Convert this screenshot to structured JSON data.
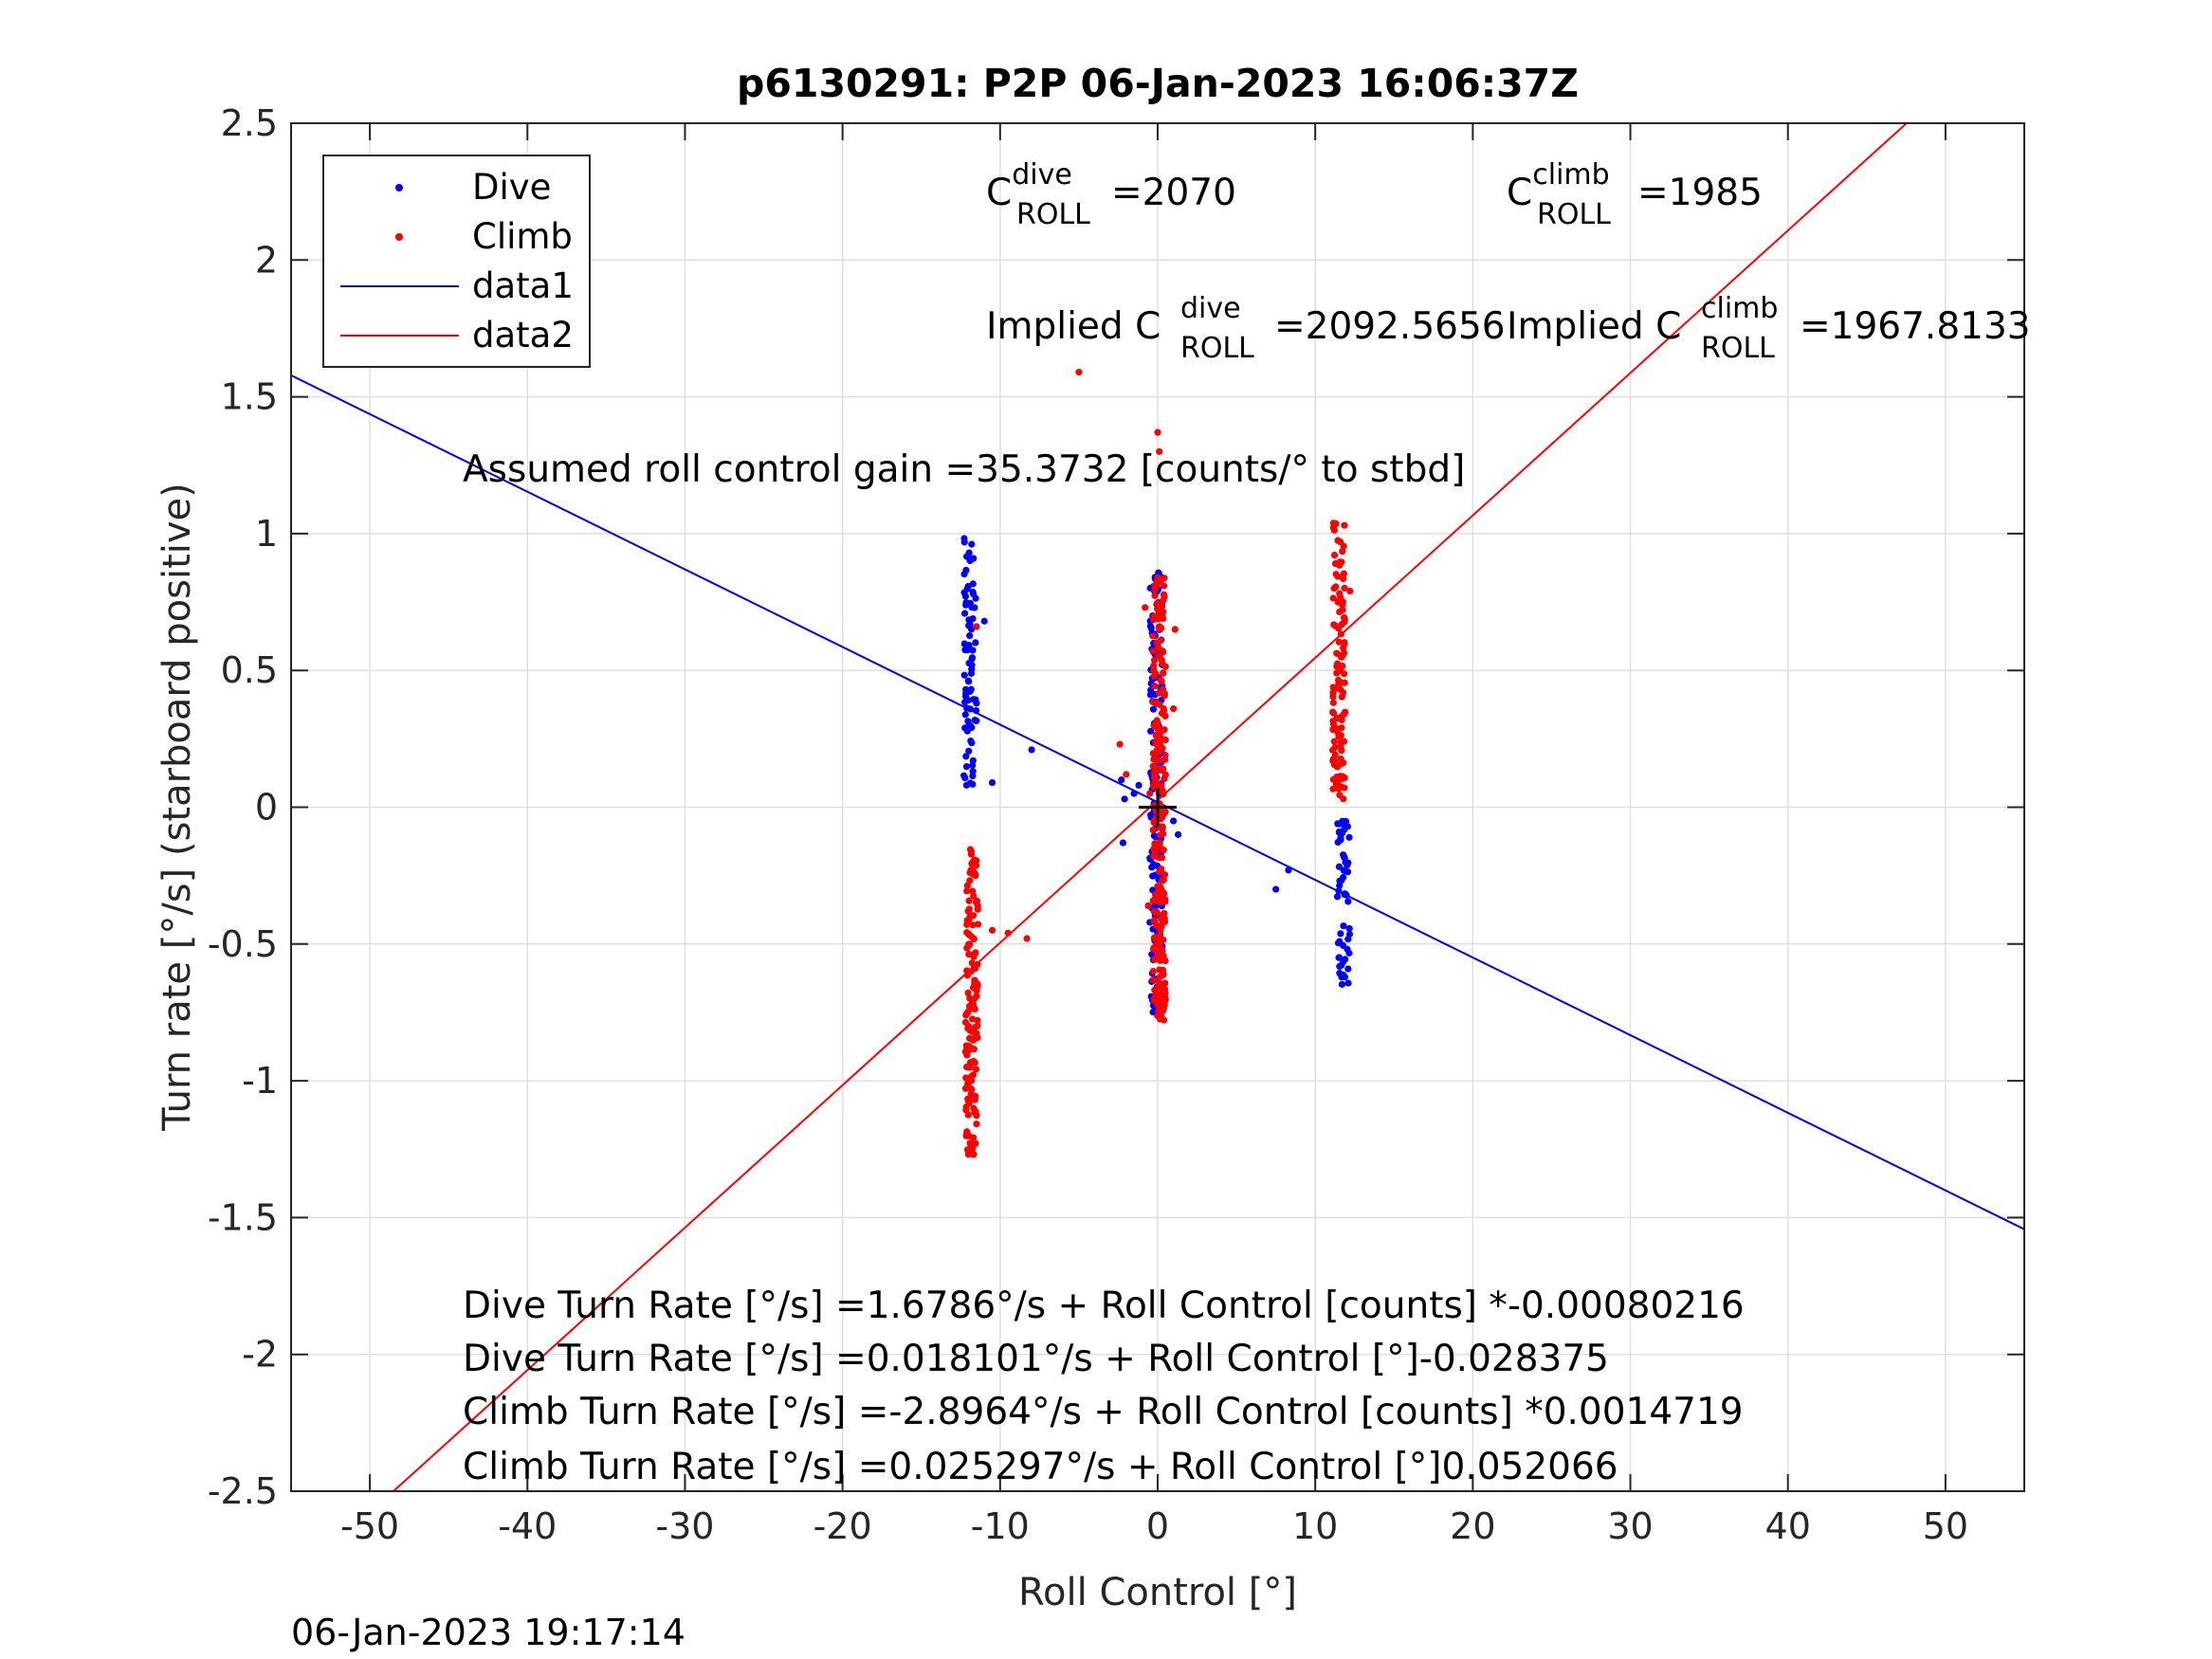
{
  "chart_data": {
    "type": "scatter",
    "title": "p6130291: P2P 06-Jan-2023 16:06:37Z",
    "xlabel": "Roll Control [°]",
    "ylabel": "Turn rate [°/s] (starboard positive)",
    "xlim": [
      -55,
      55
    ],
    "ylim": [
      -2.5,
      2.5
    ],
    "xticks": [
      -50,
      -40,
      -30,
      -20,
      -10,
      0,
      10,
      20,
      30,
      40,
      50
    ],
    "yticks": [
      -2.5,
      -2,
      -1.5,
      -1,
      -0.5,
      0,
      0.5,
      1,
      1.5,
      2,
      2.5
    ],
    "xtick_labels": [
      "-50",
      "-40",
      "-30",
      "-20",
      "-10",
      "0",
      "10",
      "20",
      "30",
      "40",
      "50"
    ],
    "ytick_labels": [
      "-2.5",
      "-2",
      "-1.5",
      "-1",
      "-0.5",
      "0",
      "0.5",
      "1",
      "1.5",
      "2",
      "2.5"
    ],
    "grid": true,
    "legend_position": "top-left",
    "legend": [
      {
        "label": "Dive",
        "kind": "marker",
        "color": "#0000ff"
      },
      {
        "label": "Climb",
        "kind": "marker",
        "color": "#ff0000"
      },
      {
        "label": "data1",
        "kind": "line",
        "color": "#0000ff"
      },
      {
        "label": "data2",
        "kind": "line",
        "color": "#ff0000"
      }
    ],
    "series": [
      {
        "name": "Dive",
        "color": "#0000ff",
        "clusters": [
          {
            "x": -11.9,
            "y_min": 0.05,
            "y_max": 1.0,
            "n": 80,
            "seed": 11
          },
          {
            "x": -0.1,
            "y_min": -0.75,
            "y_max": 0.86,
            "n": 150,
            "seed": 12
          },
          {
            "x": 11.8,
            "y_min": -0.65,
            "y_max": -0.05,
            "n": 60,
            "seed": 13
          }
        ],
        "points": [
          [
            -11.5,
            0.38
          ],
          [
            -11.0,
            0.68
          ],
          [
            -10.5,
            0.09
          ],
          [
            -8.0,
            0.21
          ],
          [
            -2.3,
            0.1
          ],
          [
            -2.2,
            -0.13
          ],
          [
            -2.1,
            0.03
          ],
          [
            -1.5,
            0.05
          ],
          [
            -1.2,
            0.08
          ],
          [
            1.0,
            -0.05
          ],
          [
            1.3,
            -0.1
          ],
          [
            7.5,
            -0.3
          ],
          [
            8.3,
            -0.23
          ]
        ]
      },
      {
        "name": "Climb",
        "color": "#ff0000",
        "clusters": [
          {
            "x": -11.8,
            "y_min": -1.27,
            "y_max": -0.15,
            "n": 150,
            "seed": 21
          },
          {
            "x": 0.1,
            "y_min": -0.78,
            "y_max": 0.85,
            "n": 260,
            "seed": 22
          },
          {
            "x": 11.5,
            "y_min": 0.03,
            "y_max": 1.04,
            "n": 120,
            "seed": 23
          }
        ],
        "points": [
          [
            -11.5,
            0.66
          ],
          [
            -10.5,
            -0.45
          ],
          [
            -9.5,
            -0.46
          ],
          [
            -8.3,
            -0.48
          ],
          [
            -2.4,
            0.23
          ],
          [
            -2.0,
            0.12
          ],
          [
            -0.8,
            0.73
          ],
          [
            -0.6,
            -0.36
          ],
          [
            -0.5,
            0.05
          ],
          [
            1.0,
            0.36
          ],
          [
            1.1,
            0.65
          ],
          [
            -5.0,
            1.59
          ],
          [
            0.0,
            1.37
          ],
          [
            0.1,
            1.3
          ],
          [
            12.2,
            0.79
          ],
          [
            11.2,
            0.8
          ]
        ]
      }
    ],
    "lines": [
      {
        "name": "data1",
        "color": "#0000ff",
        "intercept": 0.018101,
        "slope": -0.028375
      },
      {
        "name": "data2",
        "color": "#ff0000",
        "intercept": 0.025297,
        "slope": 0.052066
      }
    ],
    "center_mark": {
      "x": 0,
      "y": 0
    }
  },
  "annotations": {
    "c_dive_base": "C",
    "c_dive_sup": "dive",
    "c_dive_sub": "ROLL",
    "c_dive_value": "=2070",
    "c_climb_base": "C",
    "c_climb_sup": "climb",
    "c_climb_sub": "ROLL",
    "c_climb_value": "=1985",
    "implied_dive_prefix": "Implied C",
    "implied_dive_sup": "dive",
    "implied_dive_sub": "ROLL",
    "implied_dive_value": "=2092.5656",
    "implied_climb_prefix": "Implied C",
    "implied_climb_sup": "climb",
    "implied_climb_sub": "ROLL",
    "implied_climb_value": "=1967.8133",
    "gain": "Assumed roll control gain =35.3732 [counts/° to stbd]",
    "eq1": "Dive Turn Rate [°/s] =1.6786°/s + Roll Control [counts] *-0.00080216",
    "eq2": "Dive Turn Rate [°/s] =0.018101°/s + Roll Control [°]-0.028375",
    "eq3": "Climb Turn Rate [°/s] =-2.8964°/s + Roll Control [counts] *0.0014719",
    "eq4": "Climb Turn Rate [°/s] =0.025297°/s + Roll Control [°]0.052066"
  },
  "footer_timestamp": "06-Jan-2023 19:17:14"
}
